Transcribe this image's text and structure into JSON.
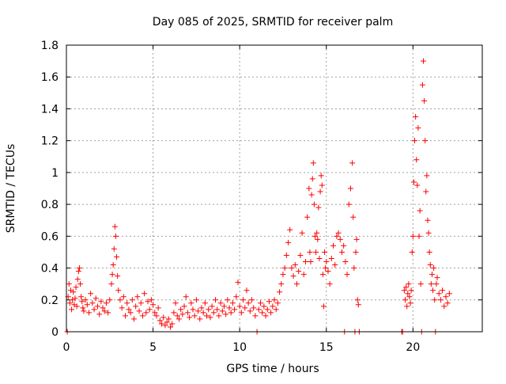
{
  "chart_data": {
    "type": "scatter",
    "title": "Day 085 of 2025, SRMTID for receiver palm",
    "xlabel": "GPS time / hours",
    "ylabel": "SRMTID / TECUs",
    "xlim": [
      0,
      24
    ],
    "ylim": [
      0,
      1.8
    ],
    "xticks": [
      0,
      5,
      10,
      15,
      20
    ],
    "xtick_labels": [
      "0",
      "5",
      "10",
      "15",
      "20"
    ],
    "yticks": [
      0,
      0.2,
      0.4,
      0.6,
      0.8,
      1.0,
      1.2,
      1.4,
      1.6,
      1.8
    ],
    "ytick_labels": [
      "0",
      "0.2",
      "0.4",
      "0.6",
      "0.8",
      "1",
      "1.2",
      "1.4",
      "1.6",
      "1.8"
    ],
    "grid": true,
    "marker": "+",
    "marker_color": "#ff0000",
    "series": [
      {
        "name": "SRMTID",
        "points": [
          [
            0.05,
            0.0
          ],
          [
            0.1,
            0.22
          ],
          [
            0.15,
            0.3
          ],
          [
            0.2,
            0.18
          ],
          [
            0.25,
            0.26
          ],
          [
            0.3,
            0.14
          ],
          [
            0.35,
            0.2
          ],
          [
            0.4,
            0.25
          ],
          [
            0.45,
            0.17
          ],
          [
            0.5,
            0.21
          ],
          [
            0.55,
            0.28
          ],
          [
            0.6,
            0.16
          ],
          [
            0.65,
            0.33
          ],
          [
            0.7,
            0.38
          ],
          [
            0.75,
            0.4
          ],
          [
            0.8,
            0.3
          ],
          [
            0.85,
            0.22
          ],
          [
            0.9,
            0.19
          ],
          [
            0.95,
            0.15
          ],
          [
            1.0,
            0.13
          ],
          [
            1.1,
            0.2
          ],
          [
            1.2,
            0.17
          ],
          [
            1.3,
            0.12
          ],
          [
            1.4,
            0.24
          ],
          [
            1.5,
            0.18
          ],
          [
            1.6,
            0.14
          ],
          [
            1.7,
            0.21
          ],
          [
            1.8,
            0.16
          ],
          [
            1.9,
            0.11
          ],
          [
            2.0,
            0.19
          ],
          [
            2.1,
            0.15
          ],
          [
            2.2,
            0.13
          ],
          [
            2.3,
            0.18
          ],
          [
            2.4,
            0.12
          ],
          [
            2.5,
            0.2
          ],
          [
            2.6,
            0.3
          ],
          [
            2.65,
            0.36
          ],
          [
            2.7,
            0.42
          ],
          [
            2.75,
            0.52
          ],
          [
            2.8,
            0.66
          ],
          [
            2.85,
            0.6
          ],
          [
            2.9,
            0.47
          ],
          [
            2.95,
            0.35
          ],
          [
            3.0,
            0.26
          ],
          [
            3.1,
            0.2
          ],
          [
            3.2,
            0.15
          ],
          [
            3.3,
            0.22
          ],
          [
            3.4,
            0.1
          ],
          [
            3.5,
            0.18
          ],
          [
            3.6,
            0.14
          ],
          [
            3.7,
            0.12
          ],
          [
            3.8,
            0.2
          ],
          [
            3.9,
            0.08
          ],
          [
            4.0,
            0.16
          ],
          [
            4.1,
            0.22
          ],
          [
            4.2,
            0.13
          ],
          [
            4.3,
            0.18
          ],
          [
            4.4,
            0.1
          ],
          [
            4.5,
            0.24
          ],
          [
            4.6,
            0.12
          ],
          [
            4.7,
            0.19
          ],
          [
            4.8,
            0.14
          ],
          [
            4.9,
            0.2
          ],
          [
            5.0,
            0.17
          ],
          [
            5.1,
            0.12
          ],
          [
            5.2,
            0.1
          ],
          [
            5.3,
            0.15
          ],
          [
            5.4,
            0.07
          ],
          [
            5.5,
            0.05
          ],
          [
            5.6,
            0.09
          ],
          [
            5.7,
            0.04
          ],
          [
            5.8,
            0.06
          ],
          [
            5.9,
            0.08
          ],
          [
            6.0,
            0.03
          ],
          [
            6.1,
            0.05
          ],
          [
            6.2,
            0.12
          ],
          [
            6.3,
            0.18
          ],
          [
            6.4,
            0.1
          ],
          [
            6.5,
            0.08
          ],
          [
            6.6,
            0.14
          ],
          [
            6.7,
            0.11
          ],
          [
            6.8,
            0.16
          ],
          [
            6.9,
            0.22
          ],
          [
            7.0,
            0.12
          ],
          [
            7.1,
            0.09
          ],
          [
            7.2,
            0.18
          ],
          [
            7.3,
            0.14
          ],
          [
            7.4,
            0.1
          ],
          [
            7.5,
            0.2
          ],
          [
            7.6,
            0.13
          ],
          [
            7.7,
            0.08
          ],
          [
            7.8,
            0.15
          ],
          [
            7.9,
            0.12
          ],
          [
            8.0,
            0.18
          ],
          [
            8.1,
            0.1
          ],
          [
            8.2,
            0.14
          ],
          [
            8.3,
            0.09
          ],
          [
            8.4,
            0.16
          ],
          [
            8.5,
            0.12
          ],
          [
            8.6,
            0.2
          ],
          [
            8.7,
            0.14
          ],
          [
            8.8,
            0.1
          ],
          [
            8.9,
            0.18
          ],
          [
            9.0,
            0.13
          ],
          [
            9.1,
            0.16
          ],
          [
            9.2,
            0.11
          ],
          [
            9.3,
            0.2
          ],
          [
            9.4,
            0.15
          ],
          [
            9.5,
            0.12
          ],
          [
            9.6,
            0.18
          ],
          [
            9.7,
            0.14
          ],
          [
            9.8,
            0.22
          ],
          [
            9.9,
            0.31
          ],
          [
            10.0,
            0.16
          ],
          [
            10.1,
            0.12
          ],
          [
            10.2,
            0.2
          ],
          [
            10.3,
            0.15
          ],
          [
            10.4,
            0.26
          ],
          [
            10.5,
            0.18
          ],
          [
            10.6,
            0.13
          ],
          [
            10.7,
            0.2
          ],
          [
            10.8,
            0.15
          ],
          [
            10.9,
            0.1
          ],
          [
            11.0,
            0.0
          ],
          [
            11.1,
            0.14
          ],
          [
            11.2,
            0.18
          ],
          [
            11.3,
            0.12
          ],
          [
            11.4,
            0.16
          ],
          [
            11.5,
            0.1
          ],
          [
            11.6,
            0.14
          ],
          [
            11.7,
            0.19
          ],
          [
            11.8,
            0.12
          ],
          [
            11.9,
            0.16
          ],
          [
            12.0,
            0.2
          ],
          [
            12.1,
            0.14
          ],
          [
            12.2,
            0.18
          ],
          [
            12.3,
            0.25
          ],
          [
            12.4,
            0.3
          ],
          [
            12.5,
            0.36
          ],
          [
            12.6,
            0.4
          ],
          [
            12.7,
            0.48
          ],
          [
            12.8,
            0.56
          ],
          [
            12.9,
            0.64
          ],
          [
            13.0,
            0.4
          ],
          [
            13.1,
            0.35
          ],
          [
            13.2,
            0.42
          ],
          [
            13.3,
            0.3
          ],
          [
            13.4,
            0.38
          ],
          [
            13.5,
            0.48
          ],
          [
            13.6,
            0.62
          ],
          [
            13.7,
            0.36
          ],
          [
            13.8,
            0.44
          ],
          [
            13.9,
            0.72
          ],
          [
            14.0,
            0.9
          ],
          [
            14.05,
            0.5
          ],
          [
            14.1,
            0.44
          ],
          [
            14.15,
            0.86
          ],
          [
            14.2,
            0.96
          ],
          [
            14.25,
            1.06
          ],
          [
            14.3,
            0.8
          ],
          [
            14.35,
            0.6
          ],
          [
            14.4,
            0.5
          ],
          [
            14.45,
            0.62
          ],
          [
            14.5,
            0.58
          ],
          [
            14.55,
            0.78
          ],
          [
            14.6,
            0.46
          ],
          [
            14.65,
            0.88
          ],
          [
            14.7,
            0.98
          ],
          [
            14.75,
            0.92
          ],
          [
            14.8,
            0.36
          ],
          [
            14.85,
            0.16
          ],
          [
            14.9,
            0.5
          ],
          [
            14.95,
            0.4
          ],
          [
            15.0,
            0.44
          ],
          [
            15.1,
            0.38
          ],
          [
            15.2,
            0.3
          ],
          [
            15.3,
            0.46
          ],
          [
            15.4,
            0.54
          ],
          [
            15.5,
            0.42
          ],
          [
            15.6,
            0.6
          ],
          [
            15.7,
            0.62
          ],
          [
            15.8,
            0.58
          ],
          [
            15.9,
            0.5
          ],
          [
            16.0,
            0.54
          ],
          [
            16.05,
            0.0
          ],
          [
            16.1,
            0.44
          ],
          [
            16.2,
            0.36
          ],
          [
            16.3,
            0.8
          ],
          [
            16.4,
            0.9
          ],
          [
            16.5,
            1.06
          ],
          [
            16.55,
            0.72
          ],
          [
            16.6,
            0.4
          ],
          [
            16.65,
            0.0
          ],
          [
            16.7,
            0.5
          ],
          [
            16.75,
            0.58
          ],
          [
            16.8,
            0.2
          ],
          [
            16.85,
            0.17
          ],
          [
            16.9,
            0.0
          ],
          [
            19.35,
            0.0
          ],
          [
            19.4,
            0.0
          ],
          [
            19.5,
            0.26
          ],
          [
            19.55,
            0.2
          ],
          [
            19.6,
            0.28
          ],
          [
            19.65,
            0.16
          ],
          [
            19.7,
            0.24
          ],
          [
            19.75,
            0.3
          ],
          [
            19.8,
            0.22
          ],
          [
            19.85,
            0.18
          ],
          [
            19.9,
            0.26
          ],
          [
            19.95,
            0.5
          ],
          [
            20.0,
            0.6
          ],
          [
            20.05,
            0.94
          ],
          [
            20.1,
            1.2
          ],
          [
            20.15,
            1.35
          ],
          [
            20.2,
            1.08
          ],
          [
            20.25,
            0.92
          ],
          [
            20.3,
            1.28
          ],
          [
            20.35,
            0.6
          ],
          [
            20.4,
            0.76
          ],
          [
            20.45,
            0.3
          ],
          [
            20.5,
            0.0
          ],
          [
            20.55,
            1.55
          ],
          [
            20.6,
            1.7
          ],
          [
            20.65,
            1.45
          ],
          [
            20.7,
            1.2
          ],
          [
            20.75,
            0.88
          ],
          [
            20.8,
            0.98
          ],
          [
            20.85,
            0.7
          ],
          [
            20.9,
            0.62
          ],
          [
            20.95,
            0.5
          ],
          [
            21.0,
            0.42
          ],
          [
            21.05,
            0.3
          ],
          [
            21.1,
            0.36
          ],
          [
            21.15,
            0.26
          ],
          [
            21.2,
            0.4
          ],
          [
            21.25,
            0.2
          ],
          [
            21.3,
            0.0
          ],
          [
            21.35,
            0.3
          ],
          [
            21.4,
            0.34
          ],
          [
            21.5,
            0.24
          ],
          [
            21.6,
            0.2
          ],
          [
            21.7,
            0.26
          ],
          [
            21.8,
            0.16
          ],
          [
            21.9,
            0.22
          ],
          [
            22.0,
            0.18
          ],
          [
            22.1,
            0.24
          ]
        ]
      }
    ]
  }
}
